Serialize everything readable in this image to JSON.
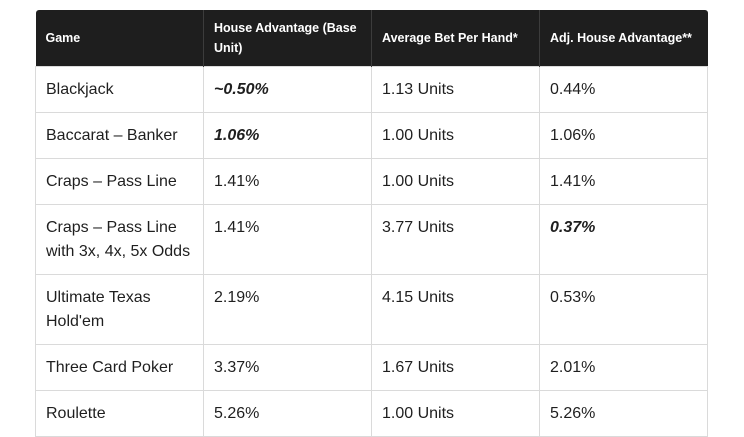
{
  "table": {
    "headers": [
      "Game",
      "House Advantage (Base Unit)",
      "Average Bet Per Hand*",
      "Adj. House Advantage**"
    ],
    "rows": [
      [
        "Blackjack",
        "~0.50%",
        "1.13 Units",
        "0.44%"
      ],
      [
        "Baccarat – Banker",
        "1.06%",
        "1.00 Units",
        "1.06%"
      ],
      [
        "Craps – Pass Line",
        "1.41%",
        "1.00 Units",
        "1.41%"
      ],
      [
        "Craps – Pass Line with 3x, 4x, 5x Odds",
        "1.41%",
        "3.77 Units",
        "0.37%"
      ],
      [
        "Ultimate Texas Hold'em",
        "2.19%",
        "4.15 Units",
        "0.53%"
      ],
      [
        "Three Card Poker",
        "3.37%",
        "1.67 Units",
        "2.01%"
      ],
      [
        "Roulette",
        "5.26%",
        "1.00 Units",
        "5.26%"
      ]
    ]
  }
}
